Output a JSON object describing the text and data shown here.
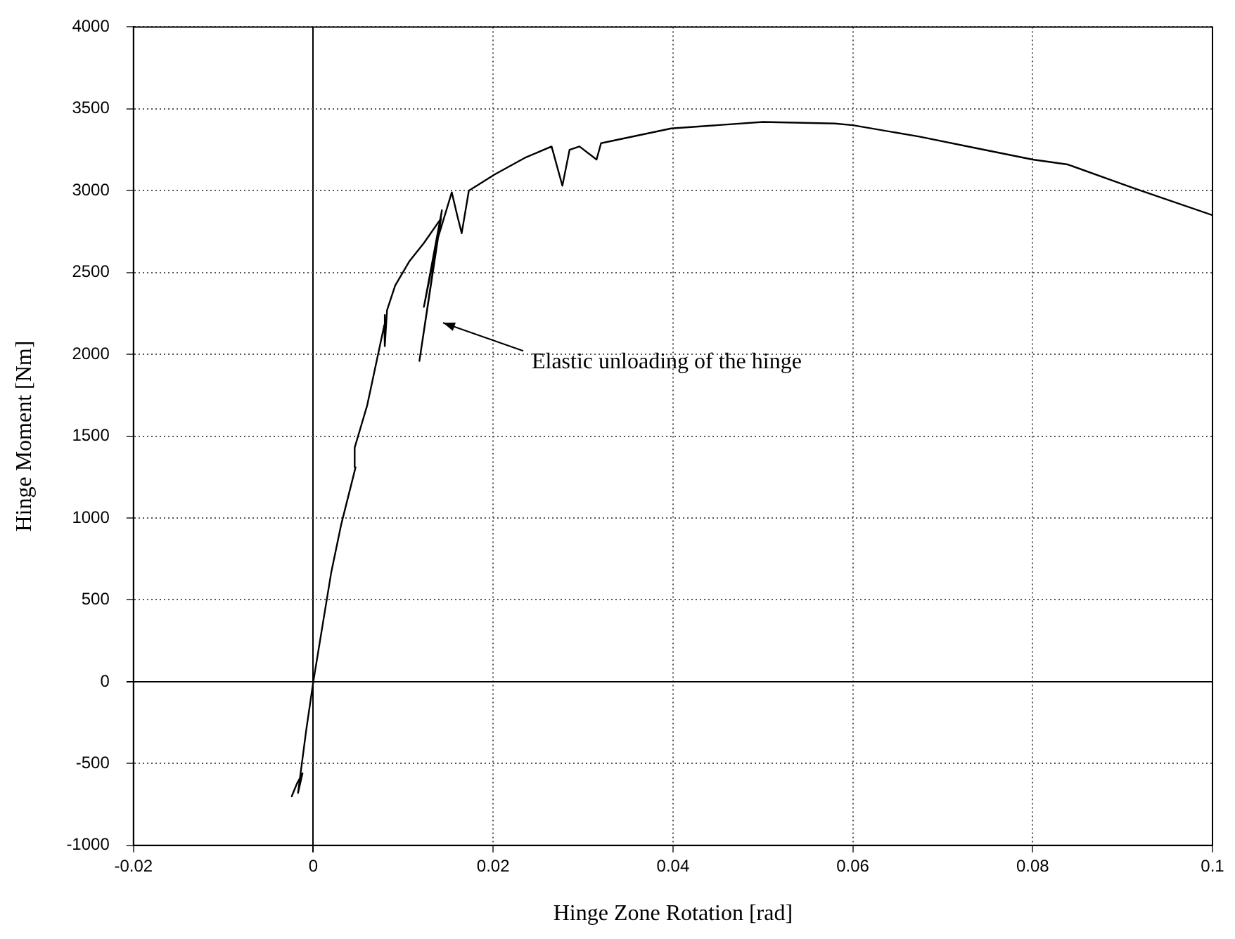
{
  "chart_data": {
    "type": "line",
    "xlabel": "Hinge Zone Rotation [rad]",
    "ylabel": "Hinge Moment [Nm]",
    "x": [
      -0.0024,
      -0.0018,
      -0.0012,
      -0.0017,
      -0.0008,
      0,
      0.002,
      0.0031,
      0.0047,
      0.0046,
      0.006,
      0.0079,
      0.008,
      0.0079,
      0.0082,
      0.0091,
      0.0107,
      0.0123,
      0.0142,
      0.0118,
      0.0143,
      0.0123,
      0.0138,
      0.0154,
      0.016,
      0.0165,
      0.0173,
      0.0202,
      0.0235,
      0.0265,
      0.0277,
      0.0285,
      0.0296,
      0.0315,
      0.032,
      0.0398,
      0.05,
      0.058,
      0.06,
      0.0674,
      0.0737,
      0.08,
      0.0839,
      0.0915,
      0.1
    ],
    "series": [
      {
        "color": "#000000",
        "values": [
          -700,
          -620,
          -560,
          -680,
          -300,
          0,
          670,
          960,
          1310,
          1430,
          1690,
          2180,
          2240,
          2050,
          2270,
          2420,
          2570,
          2680,
          2830,
          1960,
          2880,
          2290,
          2700,
          2990,
          2850,
          2740,
          3000,
          3100,
          3200,
          3270,
          3030,
          3250,
          3270,
          3190,
          3290,
          3380,
          3420,
          3410,
          3400,
          3330,
          3260,
          3190,
          3160,
          3010,
          2850
        ]
      }
    ],
    "xlim": [
      -0.02,
      0.1
    ],
    "xticks": [
      -0.02,
      0,
      0.02,
      0.04,
      0.06,
      0.08,
      0.1
    ],
    "ylim": [
      -1000,
      4000
    ],
    "yticks": [
      -1000,
      -500,
      0,
      500,
      1000,
      1500,
      2000,
      2500,
      3000,
      3500,
      4000
    ],
    "grid": true,
    "legend": false,
    "marker": "none",
    "line_style": "solid",
    "annotations": [
      "Elastic unloading of the hinge"
    ]
  }
}
